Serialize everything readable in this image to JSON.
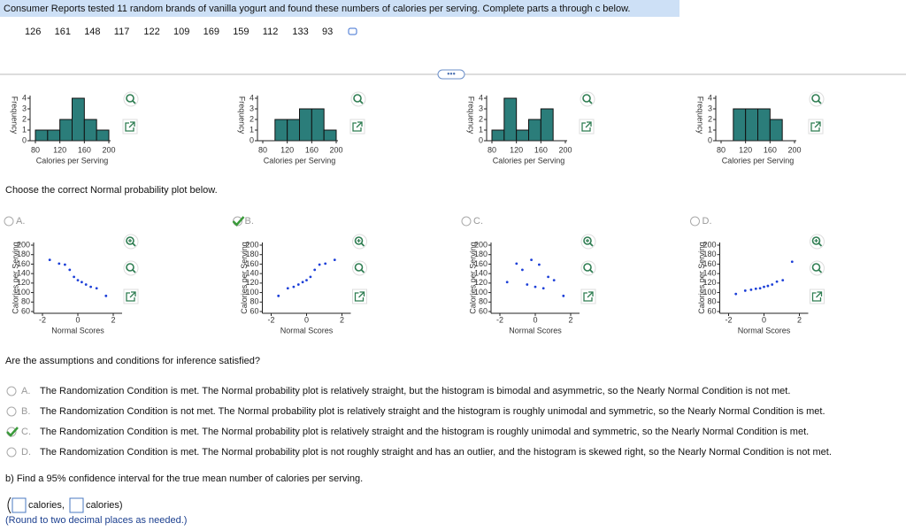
{
  "header": {
    "prompt": "Consumer Reports tested 11 random brands of vanilla yogurt and found these numbers of calories per serving. Complete parts a through c below.",
    "values": [
      126,
      161,
      148,
      117,
      122,
      109,
      169,
      159,
      112,
      133,
      93
    ]
  },
  "histograms": [
    {
      "bins": [
        80,
        100,
        120,
        140,
        160,
        180,
        200
      ],
      "counts": [
        1,
        1,
        2,
        4,
        2,
        1
      ],
      "xlim": [
        80,
        200
      ],
      "ylim": [
        0,
        4
      ],
      "xticks": [
        80,
        120,
        160,
        200
      ],
      "yticks": [
        0,
        1,
        2,
        3,
        4
      ],
      "xlabel": "Calories per Serving",
      "ylabel": "Frequency"
    },
    {
      "bins": [
        100,
        120,
        140,
        160,
        180,
        200
      ],
      "counts": [
        2,
        2,
        3,
        3,
        1
      ],
      "xlim": [
        80,
        200
      ],
      "ylim": [
        0,
        4
      ],
      "xticks": [
        80,
        120,
        160,
        200
      ],
      "yticks": [
        0,
        1,
        2,
        3,
        4
      ],
      "xlabel": "Calories per Serving",
      "ylabel": "Frequency"
    },
    {
      "bins": [
        80,
        100,
        120,
        140,
        160,
        180
      ],
      "counts": [
        1,
        4,
        1,
        2,
        3
      ],
      "xlim": [
        80,
        200
      ],
      "ylim": [
        0,
        4
      ],
      "xticks": [
        80,
        120,
        160,
        200
      ],
      "yticks": [
        0,
        1,
        2,
        3,
        4
      ],
      "xlabel": "Calories per Serving",
      "ylabel": "Frequency"
    },
    {
      "bins": [
        100,
        120,
        140,
        160,
        180
      ],
      "counts": [
        3,
        3,
        3,
        2
      ],
      "xlim": [
        80,
        200
      ],
      "ylim": [
        0,
        4
      ],
      "xticks": [
        80,
        120,
        160,
        200
      ],
      "yticks": [
        0,
        1,
        2,
        3,
        4
      ],
      "xlabel": "Calories per Serving",
      "ylabel": "Frequency"
    }
  ],
  "question_a": "Choose the correct Normal probability plot below.",
  "normal_plots": [
    {
      "label": "A.",
      "checked": false,
      "x": [
        -1.59,
        -1.06,
        -0.73,
        -0.46,
        -0.22,
        0,
        0.22,
        0.46,
        0.73,
        1.06,
        1.59
      ],
      "y": [
        169,
        161,
        159,
        148,
        133,
        126,
        122,
        117,
        112,
        109,
        93
      ],
      "xlim": [
        -2.5,
        2.5
      ],
      "ylim": [
        60,
        200
      ],
      "xticks": [
        -2,
        0,
        2
      ],
      "yticks": [
        60,
        80,
        100,
        120,
        140,
        160,
        180,
        200
      ],
      "xlabel": "Normal Scores",
      "ylabel": "Calories per Serving"
    },
    {
      "label": "B.",
      "checked": true,
      "x": [
        -1.59,
        -1.06,
        -0.73,
        -0.46,
        -0.22,
        0,
        0.22,
        0.46,
        0.73,
        1.06,
        1.59
      ],
      "y": [
        93,
        109,
        112,
        117,
        122,
        126,
        133,
        148,
        159,
        161,
        169
      ],
      "xlim": [
        -2.5,
        2.5
      ],
      "ylim": [
        60,
        200
      ],
      "xticks": [
        -2,
        0,
        2
      ],
      "yticks": [
        60,
        80,
        100,
        120,
        140,
        160,
        180,
        200
      ],
      "xlabel": "Normal Scores",
      "ylabel": "Calories per Serving"
    },
    {
      "label": "C.",
      "checked": false,
      "x": [
        -1.59,
        -1.06,
        -0.73,
        -0.46,
        -0.22,
        0,
        0.22,
        0.46,
        0.73,
        1.06,
        1.59
      ],
      "y": [
        122,
        161,
        148,
        117,
        169,
        112,
        159,
        109,
        133,
        126,
        93
      ],
      "xlim": [
        -2.5,
        2.5
      ],
      "ylim": [
        60,
        200
      ],
      "xticks": [
        -2,
        0,
        2
      ],
      "yticks": [
        60,
        80,
        100,
        120,
        140,
        160,
        180,
        200
      ],
      "xlabel": "Normal Scores",
      "ylabel": "Calories per Serving"
    },
    {
      "label": "D.",
      "checked": false,
      "x": [
        -1.59,
        -1.06,
        -0.73,
        -0.46,
        -0.22,
        0,
        0.22,
        0.46,
        0.73,
        1.06,
        1.59
      ],
      "y": [
        97,
        104,
        106,
        108,
        109,
        112,
        114,
        117,
        123,
        126,
        165
      ],
      "xlim": [
        -2.5,
        2.5
      ],
      "ylim": [
        60,
        200
      ],
      "xticks": [
        -2,
        0,
        2
      ],
      "yticks": [
        60,
        80,
        100,
        120,
        140,
        160,
        180,
        200
      ],
      "xlabel": "Normal Scores",
      "ylabel": "Calories per Serving"
    }
  ],
  "question_assumptions": "Are the assumptions and conditions for inference satisfied?",
  "answers": [
    {
      "letter": "A.",
      "checked": false,
      "text": "The Randomization Condition is met. The Normal probability plot is relatively straight, but the histogram is bimodal and asymmetric, so the Nearly Normal Condition is not met."
    },
    {
      "letter": "B.",
      "checked": false,
      "text": "The Randomization Condition is not met. The Normal probability plot is relatively straight and the histogram is roughly unimodal and symmetric, so the Nearly Normal Condition is met."
    },
    {
      "letter": "C.",
      "checked": true,
      "text": "The Randomization Condition is met. The Normal probability plot is relatively straight and the histogram is roughly unimodal and symmetric, so the Nearly Normal Condition is met."
    },
    {
      "letter": "D.",
      "checked": false,
      "text": "The Randomization Condition is met. The Normal probability plot is not roughly straight and has an outlier, and the histogram is skewed right, so the Nearly Normal Condition is not met."
    }
  ],
  "part_b": {
    "question": "b) Find a 95% confidence interval for the true mean number of calories per serving.",
    "unit_low": "calories,",
    "unit_high": "calories)",
    "note": "(Round to two decimal places as needed.)"
  }
}
